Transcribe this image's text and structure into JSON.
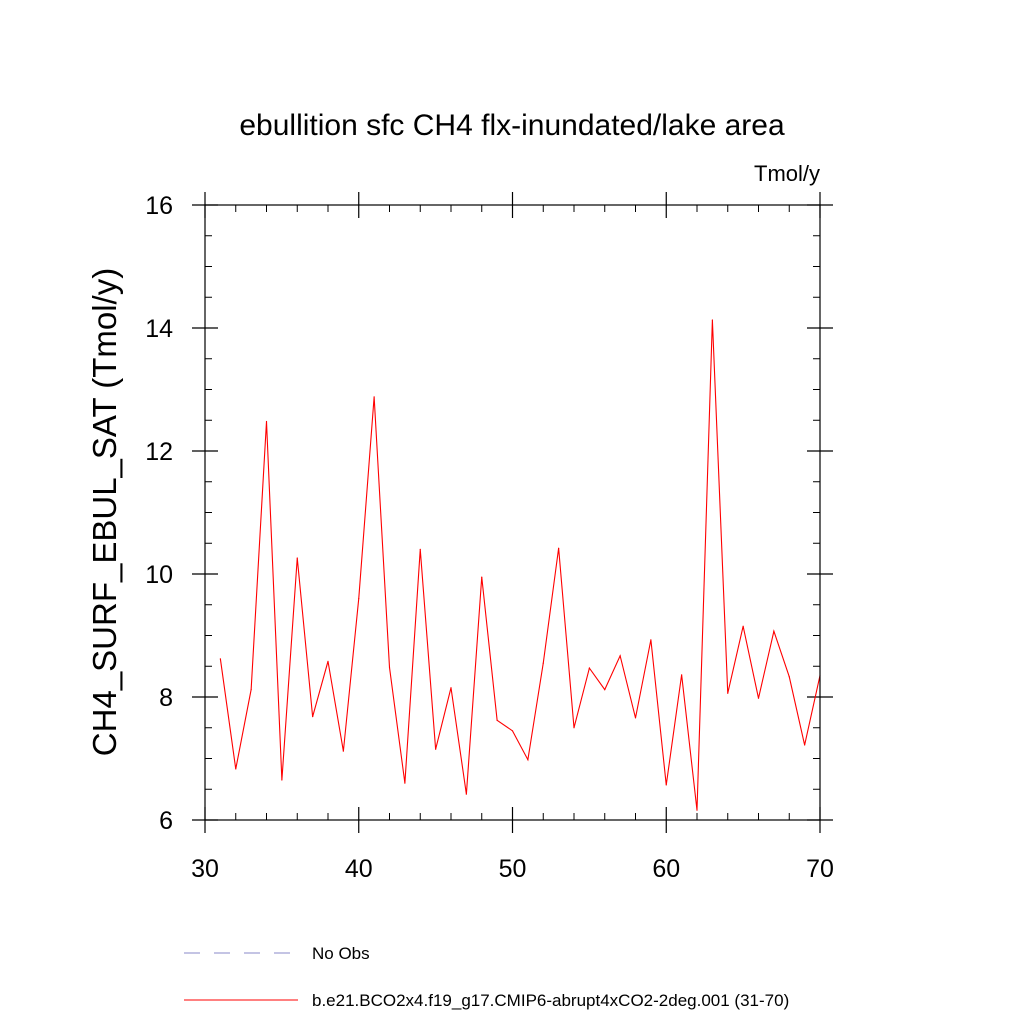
{
  "chart_data": {
    "type": "line",
    "title": "ebullition sfc CH4 flx-inundated/lake area",
    "units_label": "Tmol/y",
    "ylabel": "CH4_SURF_EBUL_SAT  (Tmol/y)",
    "xlabel": "",
    "xlim": [
      30,
      70
    ],
    "ylim": [
      6,
      16
    ],
    "x_ticks": [
      30,
      40,
      50,
      60,
      70
    ],
    "y_ticks": [
      6,
      8,
      10,
      12,
      14,
      16
    ],
    "x_minor_step": 2,
    "y_minor_step": 0.5,
    "grid": false,
    "legend_position": "bottom",
    "series": [
      {
        "name": "b.e21.BCO2x4.f19_g17.CMIP6-abrupt4xCO2-2deg.001 (31-70)",
        "color": "#ff0000",
        "style": "solid",
        "x": [
          31,
          32,
          33,
          34,
          35,
          36,
          37,
          38,
          39,
          40,
          41,
          42,
          43,
          44,
          45,
          46,
          47,
          48,
          49,
          50,
          51,
          52,
          53,
          54,
          55,
          56,
          57,
          58,
          59,
          60,
          61,
          62,
          63,
          64,
          65,
          66,
          67,
          68,
          69,
          70
        ],
        "values": [
          8.62,
          6.83,
          8.12,
          12.48,
          6.65,
          10.26,
          7.68,
          8.58,
          7.12,
          9.6,
          12.88,
          8.48,
          6.6,
          10.4,
          7.15,
          8.15,
          6.42,
          9.95,
          7.62,
          7.45,
          6.98,
          8.55,
          10.42,
          7.5,
          8.47,
          8.12,
          8.67,
          7.66,
          8.93,
          6.57,
          8.36,
          6.16,
          14.13,
          8.06,
          9.15,
          7.98,
          9.07,
          8.33,
          7.22,
          8.35
        ]
      }
    ],
    "legend": [
      {
        "label": "No Obs",
        "color": "#8a8ac8",
        "style": "dashed"
      },
      {
        "label": "b.e21.BCO2x4.f19_g17.CMIP6-abrupt4xCO2-2deg.001 (31-70)",
        "color": "#ff0000",
        "style": "solid"
      }
    ]
  }
}
